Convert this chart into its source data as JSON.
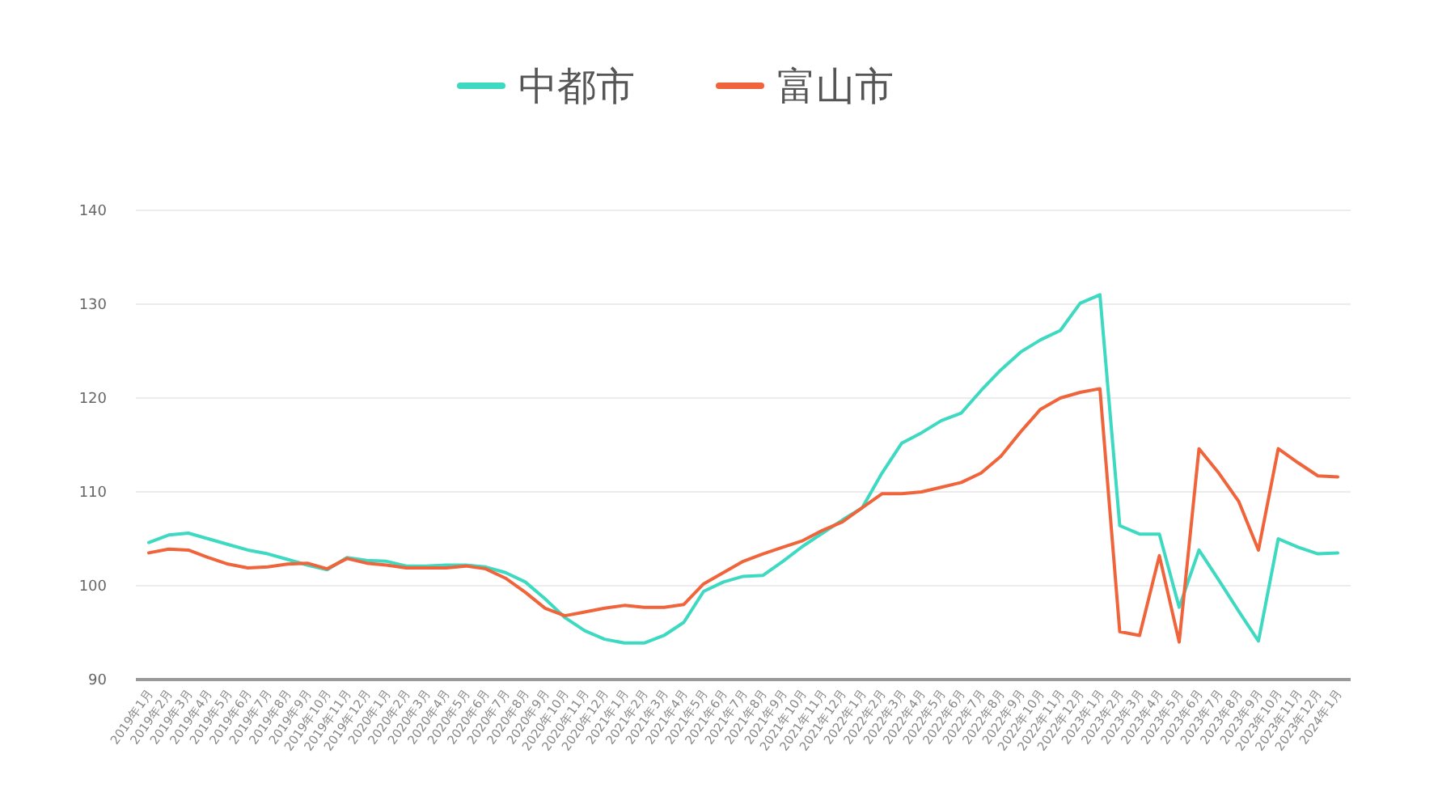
{
  "chart_data": {
    "type": "line",
    "categories": [
      "2019年1月",
      "2019年2月",
      "2019年3月",
      "2019年4月",
      "2019年5月",
      "2019年6月",
      "2019年7月",
      "2019年8月",
      "2019年9月",
      "2019年10月",
      "2019年11月",
      "2019年12月",
      "2020年1月",
      "2020年2月",
      "2020年3月",
      "2020年4月",
      "2020年5月",
      "2020年6月",
      "2020年7月",
      "2020年8月",
      "2020年9月",
      "2020年10月",
      "2020年11月",
      "2020年12月",
      "2021年1月",
      "2021年2月",
      "2021年3月",
      "2021年4月",
      "2021年5月",
      "2021年6月",
      "2021年7月",
      "2021年8月",
      "2021年9月",
      "2021年10月",
      "2021年11月",
      "2021年12月",
      "2022年1月",
      "2022年2月",
      "2022年3月",
      "2022年4月",
      "2022年5月",
      "2022年6月",
      "2022年7月",
      "2022年8月",
      "2022年9月",
      "2022年10月",
      "2022年11月",
      "2022年12月",
      "2023年1月",
      "2023年2月",
      "2023年3月",
      "2023年4月",
      "2023年5月",
      "2023年6月",
      "2023年7月",
      "2023年8月",
      "2023年9月",
      "2023年10月",
      "2023年11月",
      "2023年12月",
      "2024年1月"
    ],
    "series": [
      {
        "name": "中都市",
        "color": "#3dd9c1",
        "values": [
          104.6,
          105.4,
          105.6,
          105.0,
          104.4,
          103.8,
          103.4,
          102.8,
          102.2,
          101.7,
          103.0,
          102.7,
          102.6,
          102.1,
          102.1,
          102.2,
          102.2,
          102.0,
          101.4,
          100.4,
          98.6,
          96.6,
          95.2,
          94.3,
          93.9,
          93.9,
          94.7,
          96.1,
          99.4,
          100.4,
          101.0,
          101.1,
          102.6,
          104.2,
          105.6,
          107.0,
          108.3,
          112.0,
          115.2,
          116.3,
          117.6,
          118.4,
          120.8,
          123.0,
          124.9,
          126.2,
          127.2,
          130.1,
          131.0,
          106.4,
          105.5,
          105.5,
          97.7,
          103.8,
          100.6,
          97.3,
          94.1,
          105.0,
          104.1,
          103.4,
          103.5
        ]
      },
      {
        "name": "富山市",
        "color": "#f0643c",
        "values": [
          103.5,
          103.9,
          103.8,
          103.0,
          102.3,
          101.9,
          102.0,
          102.3,
          102.4,
          101.8,
          102.9,
          102.4,
          102.2,
          101.9,
          101.9,
          101.9,
          102.1,
          101.8,
          100.8,
          99.3,
          97.6,
          96.8,
          97.2,
          97.6,
          97.9,
          97.7,
          97.7,
          98.0,
          100.2,
          101.4,
          102.6,
          103.4,
          104.1,
          104.8,
          105.9,
          106.8,
          108.3,
          109.8,
          109.8,
          110.0,
          110.5,
          111.0,
          112.0,
          113.8,
          116.4,
          118.8,
          120.0,
          120.6,
          121.0,
          95.1,
          94.7,
          103.2,
          94.0,
          114.6,
          112.0,
          109.0,
          103.8,
          114.6,
          113.1,
          111.7,
          111.6
        ]
      }
    ],
    "ylim": [
      90,
      140
    ],
    "yticks": [
      90,
      100,
      110,
      120,
      130,
      140
    ],
    "grid": "y",
    "legend": "top",
    "marker": "none",
    "line_style": "solid"
  }
}
